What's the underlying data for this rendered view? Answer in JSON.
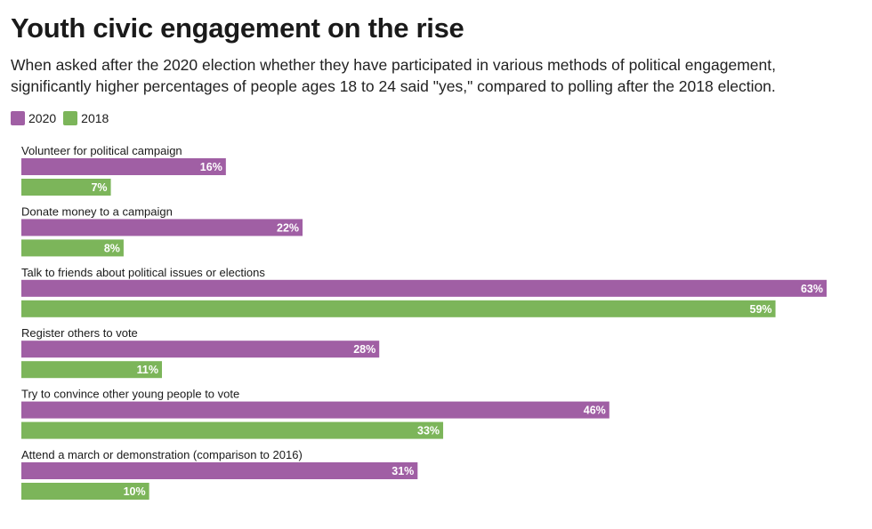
{
  "title": "Youth civic engagement on the rise",
  "subtitle": "When asked after the 2020 election whether they have participated in various methods of political engagement, significantly higher percentages of people ages 18 to 24 said \"yes,\" compared to polling after the 2018 election.",
  "legend": [
    {
      "label": "2020",
      "color": "#a05fa4"
    },
    {
      "label": "2018",
      "color": "#7cb55a"
    }
  ],
  "chart_data": {
    "type": "bar",
    "orientation": "horizontal",
    "title": "Youth civic engagement on the rise",
    "xlabel": "",
    "ylabel": "",
    "xlim": [
      0,
      63
    ],
    "grid": false,
    "legend_position": "top-left",
    "categories": [
      "Volunteer for political campaign",
      "Donate money to a campaign",
      "Talk to friends about political issues or elections",
      "Register others to vote",
      "Try to convince other young people to vote",
      "Attend a march or demonstration (comparison to 2016)"
    ],
    "series": [
      {
        "name": "2020",
        "color": "#a05fa4",
        "values": [
          16,
          22,
          63,
          28,
          46,
          31
        ]
      },
      {
        "name": "2018",
        "color": "#7cb55a",
        "values": [
          7,
          8,
          59,
          11,
          33,
          10
        ]
      }
    ],
    "value_suffix": "%"
  }
}
